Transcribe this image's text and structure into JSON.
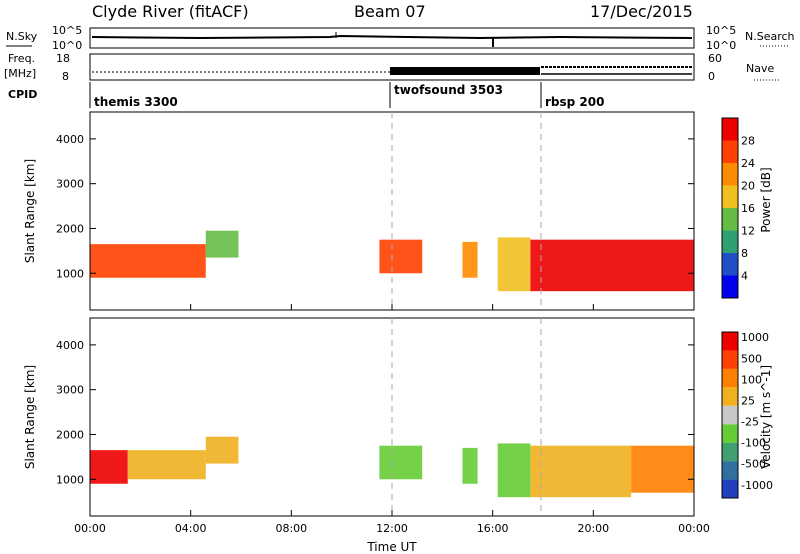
{
  "header": {
    "station": "Clyde River (fitACF)",
    "beam": "Beam 07",
    "date": "17/Dec/2015"
  },
  "top_panels": {
    "nsky_label": "N.Sky",
    "nsearch_label": "N.Search",
    "freq_label_line1": "Freq.",
    "freq_label_line2": "[MHz]",
    "nave_label": "Nave",
    "cpid_label": "CPID",
    "noise_ticks_left": [
      "10^5",
      "10^0"
    ],
    "noise_ticks_right": [
      "10^5",
      "10^0"
    ],
    "freq_ticks": [
      "18",
      "8"
    ],
    "nave_ticks": [
      "60",
      "0"
    ],
    "cpid_modes": [
      {
        "name": "themis 3300",
        "start_hour": 0
      },
      {
        "name": "twofsound 3503",
        "start_hour": 12
      },
      {
        "name": "rbsp 200",
        "start_hour": 18
      }
    ]
  },
  "chart_data": [
    {
      "type": "heatmap",
      "title": "",
      "xlabel": "",
      "ylabel": "Slant Range [km]",
      "xlim": [
        0,
        24
      ],
      "ylim": [
        180,
        4600
      ],
      "x_ticks": [
        "00:00",
        "04:00",
        "08:00",
        "12:00",
        "16:00",
        "20:00",
        "00:00"
      ],
      "y_ticks": [
        1000,
        2000,
        3000,
        4000
      ],
      "colorbar": {
        "label": "Power [dB]",
        "range": [
          0,
          30
        ],
        "tick_labels": [
          "4",
          "8",
          "12",
          "16",
          "20",
          "24",
          "28"
        ],
        "colors": [
          "#0000ee",
          "#2050c8",
          "#30a070",
          "#66bb44",
          "#f0c020",
          "#ff8c00",
          "#ff4000",
          "#ee0000"
        ]
      },
      "echo_regions": [
        {
          "start_hour": 0.0,
          "end_hour": 4.6,
          "range_km": [
            900,
            1650
          ],
          "value": 24
        },
        {
          "start_hour": 4.6,
          "end_hour": 5.9,
          "range_km": [
            1350,
            1950
          ],
          "value": 12
        },
        {
          "start_hour": 11.5,
          "end_hour": 13.2,
          "range_km": [
            1000,
            1750
          ],
          "value": 26
        },
        {
          "start_hour": 14.8,
          "end_hour": 15.4,
          "range_km": [
            900,
            1700
          ],
          "value": 22
        },
        {
          "start_hour": 16.2,
          "end_hour": 17.5,
          "range_km": [
            600,
            1800
          ],
          "value": 18
        },
        {
          "start_hour": 17.5,
          "end_hour": 24.0,
          "range_km": [
            600,
            1750
          ],
          "value": 28
        }
      ],
      "grid": false
    },
    {
      "type": "heatmap",
      "title": "",
      "xlabel": "Time UT",
      "ylabel": "Slant Range [km]",
      "xlim": [
        0,
        24
      ],
      "ylim": [
        180,
        4600
      ],
      "x_ticks": [
        "00:00",
        "04:00",
        "08:00",
        "12:00",
        "16:00",
        "20:00",
        "00:00"
      ],
      "y_ticks": [
        1000,
        2000,
        3000,
        4000
      ],
      "colorbar": {
        "label": "Velocity [m s^-1]",
        "range": [
          -1000,
          1000
        ],
        "tick_labels": [
          "1000",
          "500",
          "100",
          "25",
          "-25",
          "-100",
          "-500",
          "-1000"
        ],
        "colors": [
          "#2040c0",
          "#3070a0",
          "#40a070",
          "#66cc33",
          "#c8c8c8",
          "#f0b020",
          "#ff8000",
          "#ff4000",
          "#ee0000"
        ]
      },
      "echo_regions": [
        {
          "start_hour": 0.0,
          "end_hour": 1.5,
          "range_km": [
            900,
            1650
          ],
          "value": 800
        },
        {
          "start_hour": 1.5,
          "end_hour": 4.6,
          "range_km": [
            1000,
            1650
          ],
          "value": 300
        },
        {
          "start_hour": 4.6,
          "end_hour": 5.9,
          "range_km": [
            1350,
            1950
          ],
          "value": 200
        },
        {
          "start_hour": 11.5,
          "end_hour": 13.2,
          "range_km": [
            1000,
            1750
          ],
          "value": -120
        },
        {
          "start_hour": 14.8,
          "end_hour": 15.4,
          "range_km": [
            900,
            1700
          ],
          "value": -150
        },
        {
          "start_hour": 16.2,
          "end_hour": 17.5,
          "range_km": [
            600,
            1800
          ],
          "value": -200
        },
        {
          "start_hour": 17.5,
          "end_hour": 21.5,
          "range_km": [
            600,
            1750
          ],
          "value": 150
        },
        {
          "start_hour": 21.5,
          "end_hour": 24.0,
          "range_km": [
            700,
            1750
          ],
          "value": 500
        }
      ],
      "grid": false
    }
  ]
}
